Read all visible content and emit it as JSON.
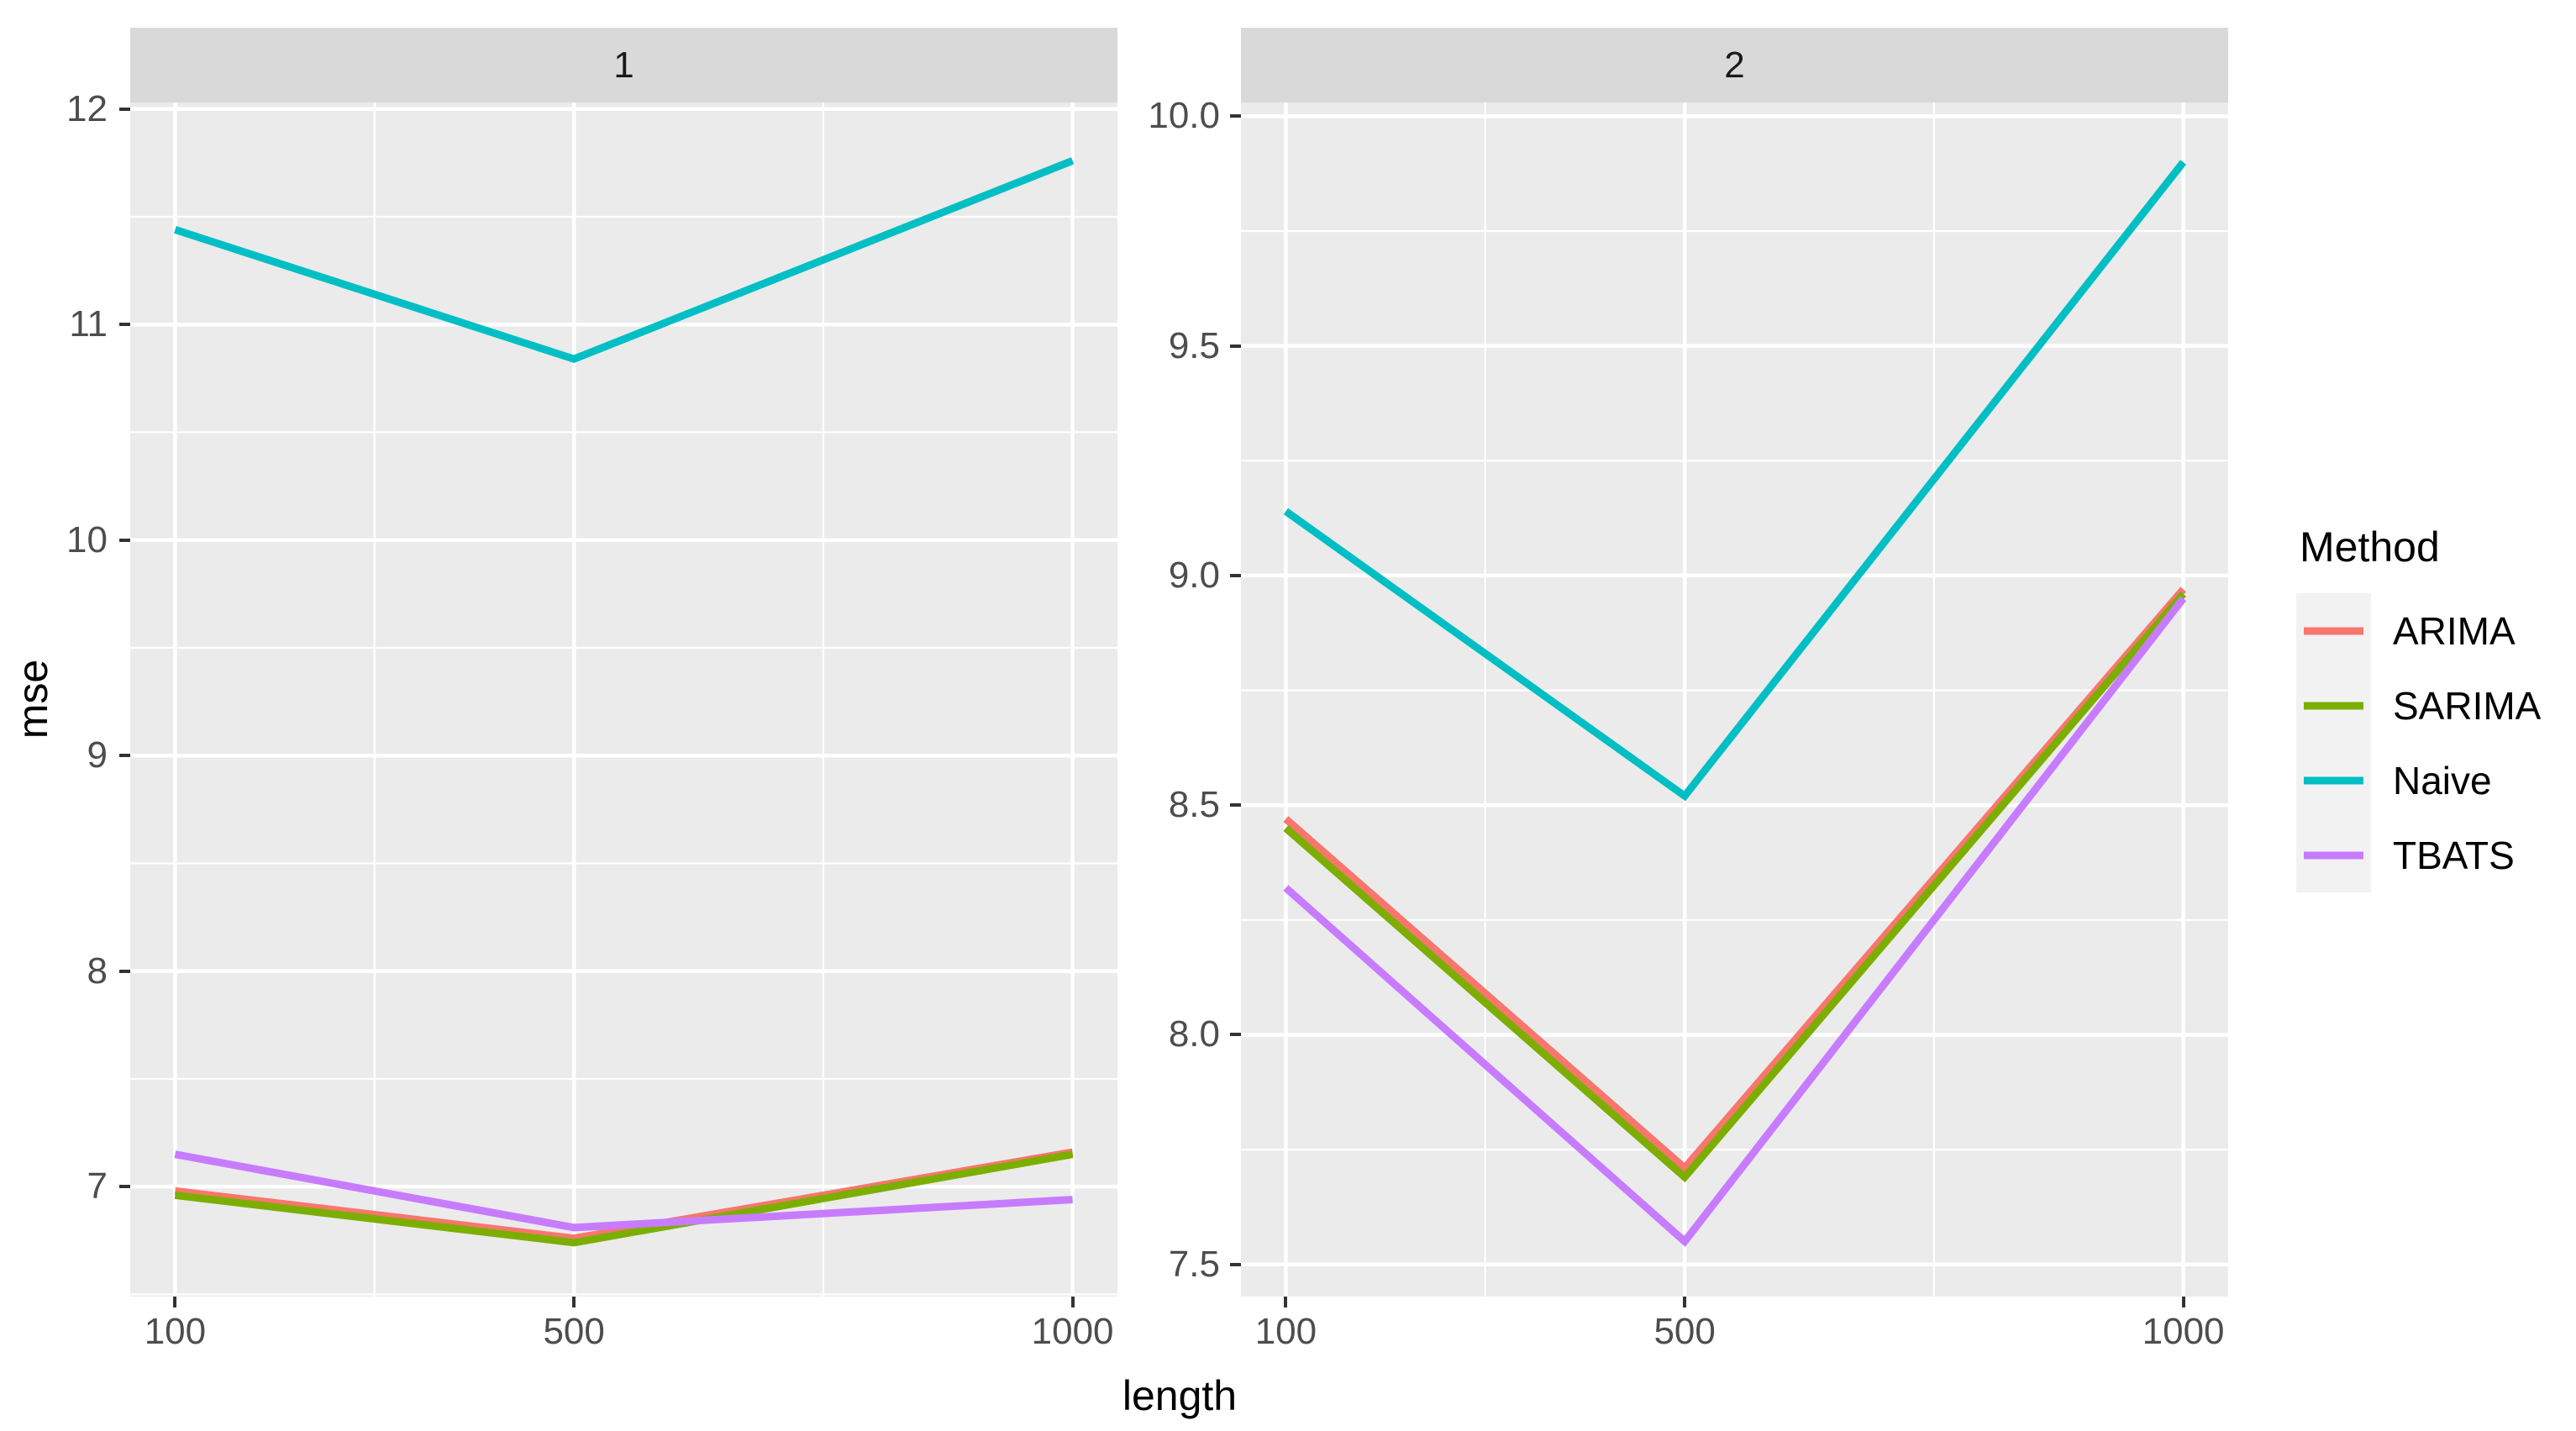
{
  "axes": {
    "x_title": "length",
    "y_title": "mse"
  },
  "x_axis": {
    "tick_labels": [
      "100",
      "500",
      "1000"
    ],
    "tick_values": [
      100,
      500,
      1000
    ],
    "minor_values": [
      300,
      750
    ],
    "domain": [
      55,
      1045
    ]
  },
  "facets": [
    {
      "label": "1",
      "y_domain": [
        6.49,
        12.03
      ],
      "y_tick_labels": [
        "12",
        "11",
        "10",
        "9",
        "8",
        "7"
      ],
      "y_tick_values": [
        12,
        11,
        10,
        9,
        8,
        7
      ],
      "y_minor_values": [
        11.5,
        10.5,
        9.5,
        8.5,
        7.5,
        6.5
      ]
    },
    {
      "label": "2",
      "y_domain": [
        7.43,
        10.03
      ],
      "y_tick_labels": [
        "10.0",
        "9.5",
        "9.0",
        "8.5",
        "8.0",
        "7.5"
      ],
      "y_tick_values": [
        10.0,
        9.5,
        9.0,
        8.5,
        8.0,
        7.5
      ],
      "y_minor_values": [
        9.75,
        9.25,
        8.75,
        8.25,
        7.75
      ]
    }
  ],
  "legend": {
    "title": "Method",
    "entries": [
      {
        "label": "ARIMA",
        "color": "#F8766D"
      },
      {
        "label": "SARIMA",
        "color": "#7CAE00"
      },
      {
        "label": "Naive",
        "color": "#00BFC4"
      },
      {
        "label": "TBATS",
        "color": "#C77CFF"
      }
    ]
  },
  "colors": {
    "panel_bg": "#EBEBEB",
    "strip_bg": "#D9D9D9",
    "grid": "#FFFFFF",
    "tick_mark": "#333333",
    "tick_text": "#4D4D4D",
    "legend_key_bg": "#F2F2F2"
  },
  "chart_data": [
    {
      "type": "line",
      "facet": "1",
      "title": "1",
      "xlabel": "length",
      "ylabel": "mse",
      "x": [
        100,
        500,
        1000
      ],
      "xlim": [
        55,
        1045
      ],
      "ylim": [
        6.49,
        12.03
      ],
      "grid": "on",
      "legend_position": "right",
      "series": [
        {
          "name": "ARIMA",
          "color": "#F8766D",
          "values": [
            6.98,
            6.76,
            7.16
          ]
        },
        {
          "name": "SARIMA",
          "color": "#7CAE00",
          "values": [
            6.96,
            6.74,
            7.15
          ]
        },
        {
          "name": "Naive",
          "color": "#00BFC4",
          "values": [
            11.44,
            10.84,
            11.76
          ]
        },
        {
          "name": "TBATS",
          "color": "#C77CFF",
          "values": [
            7.15,
            6.81,
            6.94
          ]
        }
      ]
    },
    {
      "type": "line",
      "facet": "2",
      "title": "2",
      "xlabel": "length",
      "ylabel": "mse",
      "x": [
        100,
        500,
        1000
      ],
      "xlim": [
        55,
        1045
      ],
      "ylim": [
        7.43,
        10.03
      ],
      "grid": "on",
      "legend_position": "right",
      "series": [
        {
          "name": "ARIMA",
          "color": "#F8766D",
          "values": [
            8.47,
            7.71,
            8.97
          ]
        },
        {
          "name": "SARIMA",
          "color": "#7CAE00",
          "values": [
            8.45,
            7.69,
            8.96
          ]
        },
        {
          "name": "Naive",
          "color": "#00BFC4",
          "values": [
            9.14,
            8.52,
            9.9
          ]
        },
        {
          "name": "TBATS",
          "color": "#C77CFF",
          "values": [
            8.32,
            7.55,
            8.95
          ]
        }
      ]
    }
  ]
}
